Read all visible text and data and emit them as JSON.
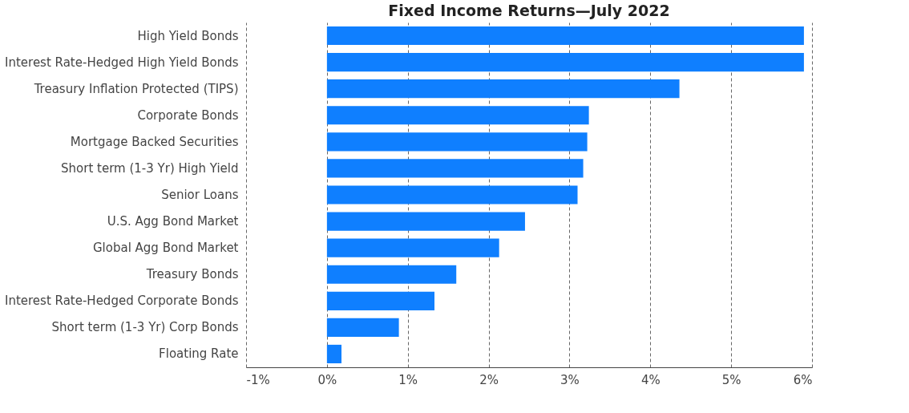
{
  "chart_data": {
    "type": "bar",
    "orientation": "horizontal",
    "title": "Fixed Income Returns—July 2022",
    "categories": [
      "High Yield Bonds",
      "Interest Rate-Hedged High Yield Bonds",
      "Treasury Inflation Protected (TIPS)",
      "Corporate Bonds",
      "Mortgage Backed Securities",
      "Short term (1-3 Yr) High Yield",
      "Senior Loans",
      "U.S. Agg Bond Market",
      "Global Agg Bond Market",
      "Treasury Bonds",
      "Interest Rate-Hedged Corporate Bonds",
      "Short term (1-3 Yr) Corp Bonds",
      "Floating Rate"
    ],
    "values": [
      5.9,
      5.9,
      4.36,
      3.24,
      3.22,
      3.17,
      3.1,
      2.45,
      2.13,
      1.6,
      1.33,
      0.89,
      0.18
    ],
    "color": "#0f7fff",
    "xlim": [
      -1,
      6
    ],
    "xticks": [
      {
        "value": -1,
        "label": "-1%"
      },
      {
        "value": 0,
        "label": "0%"
      },
      {
        "value": 1,
        "label": "1%"
      },
      {
        "value": 2,
        "label": "2%"
      },
      {
        "value": 3,
        "label": "3%"
      },
      {
        "value": 4,
        "label": "4%"
      },
      {
        "value": 5,
        "label": "5%"
      },
      {
        "value": 6,
        "label": "6%"
      }
    ],
    "grid": "x"
  }
}
